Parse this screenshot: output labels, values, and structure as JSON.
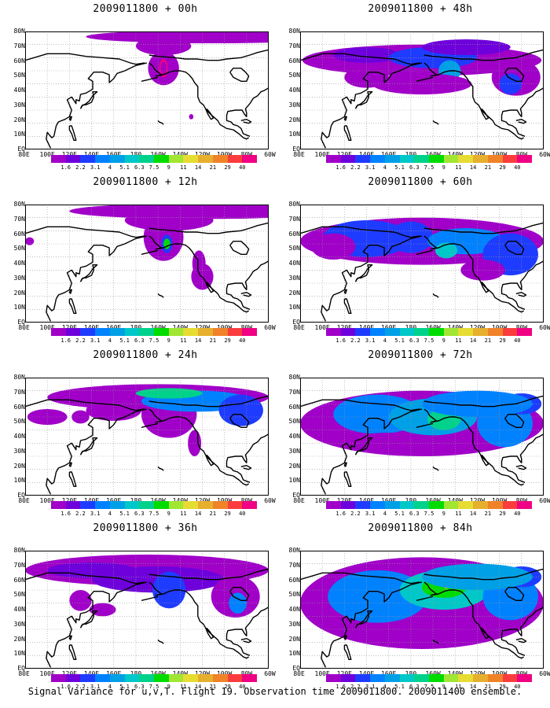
{
  "caption": "Signal Variance for u,v,T. Flight 19. Observation time 2009011800. 2009011400 ensemble.",
  "panels": [
    {
      "title": "2009011800 + 00h"
    },
    {
      "title": "2009011800 + 48h"
    },
    {
      "title": "2009011800 + 12h"
    },
    {
      "title": "2009011800 + 60h"
    },
    {
      "title": "2009011800 + 24h"
    },
    {
      "title": "2009011800 + 72h"
    },
    {
      "title": "2009011800 + 36h"
    },
    {
      "title": "2009011800 + 84h"
    }
  ],
  "lat_labels": [
    "80N",
    "70N",
    "60N",
    "50N",
    "40N",
    "30N",
    "20N",
    "10N",
    "EQ"
  ],
  "lon_labels": [
    "80E",
    "100E",
    "120E",
    "140E",
    "160E",
    "180",
    "160W",
    "140W",
    "120W",
    "100W",
    "80W",
    "60W"
  ],
  "colorbar": {
    "labels": [
      "1.6",
      "2.2",
      "3.1",
      "4",
      "5.1",
      "6.3",
      "7.5",
      "9",
      "11",
      "14",
      "21",
      "29",
      "40"
    ],
    "colors": [
      "#a000c8",
      "#6e00dc",
      "#1e3cff",
      "#0082ff",
      "#00a0e6",
      "#00c8c8",
      "#00d28c",
      "#00dc00",
      "#a0e632",
      "#e6dc32",
      "#e6af2d",
      "#f08228",
      "#fa3c3c",
      "#f00082"
    ]
  }
}
